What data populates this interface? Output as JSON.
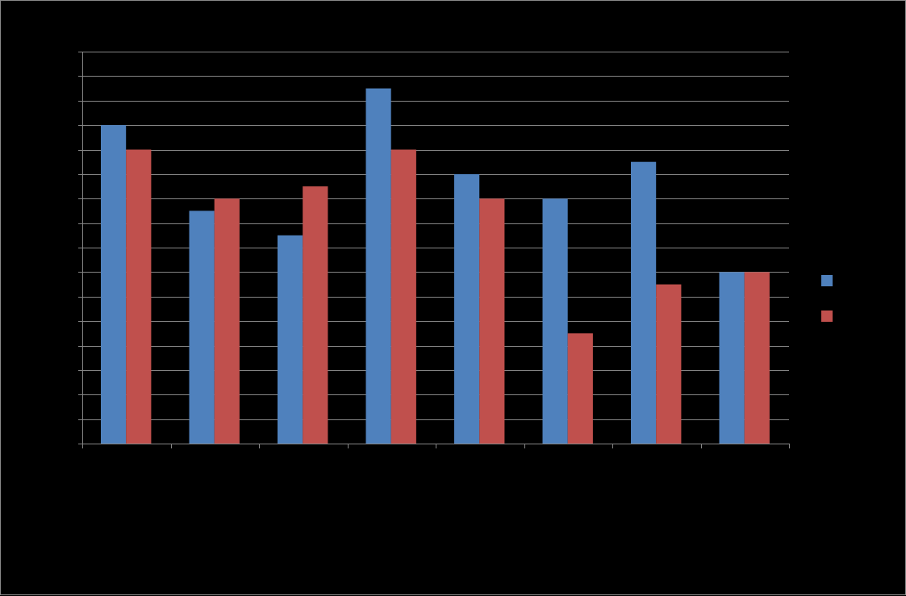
{
  "chart_data": {
    "type": "bar",
    "title": "",
    "xlabel": "",
    "ylabel": "",
    "categories": [
      "",
      "",
      "",
      "",
      "",
      "",
      "",
      ""
    ],
    "ylim": [
      0,
      16
    ],
    "y_gridline_step": 1,
    "grid": true,
    "legend_position": "right",
    "series": [
      {
        "color": "#4F81BD",
        "values": [
          13,
          9.5,
          8.5,
          14.5,
          11,
          10,
          11.5,
          7
        ]
      },
      {
        "color": "#C0504D",
        "values": [
          12,
          10,
          10.5,
          12,
          10,
          4.5,
          6.5,
          7
        ]
      }
    ]
  }
}
